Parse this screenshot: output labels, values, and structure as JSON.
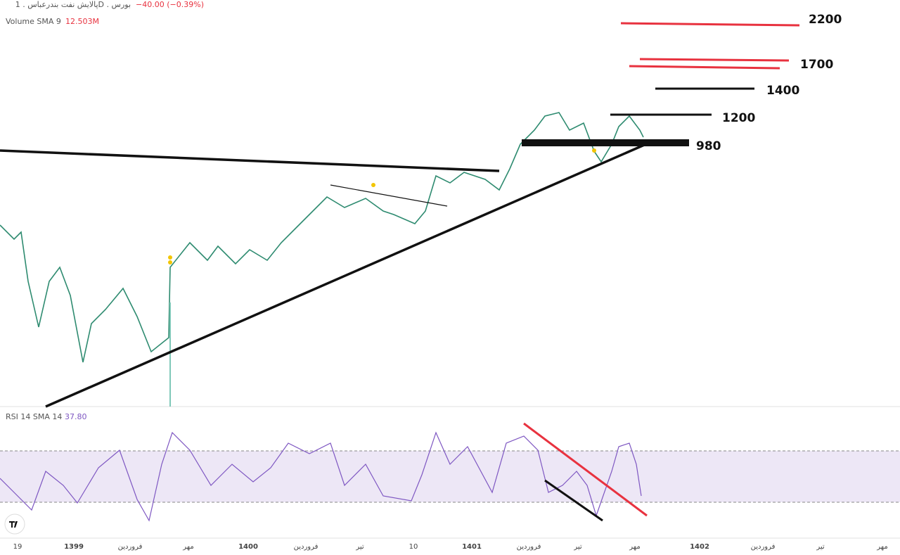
{
  "header": {
    "symbol": "پالایش نفت بندرعباس . 1D . بورس",
    "change": "−40.00 (−0.39%)"
  },
  "indicators": {
    "volume_label": "Volume SMA 9",
    "volume_value": "12.503M",
    "rsi_label": "RSI 14 SMA 14",
    "rsi_value": "37.80"
  },
  "levels": [
    "2200",
    "1700",
    "1400",
    "1200",
    "980"
  ],
  "x_axis": [
    "19",
    "1399",
    "فروردین",
    "مهر",
    "1400",
    "فروردین",
    "تیر",
    "10",
    "1401",
    "فروردین",
    "تیر",
    "مهر",
    "1402",
    "فروردین",
    "تیر",
    "مهر"
  ]
}
